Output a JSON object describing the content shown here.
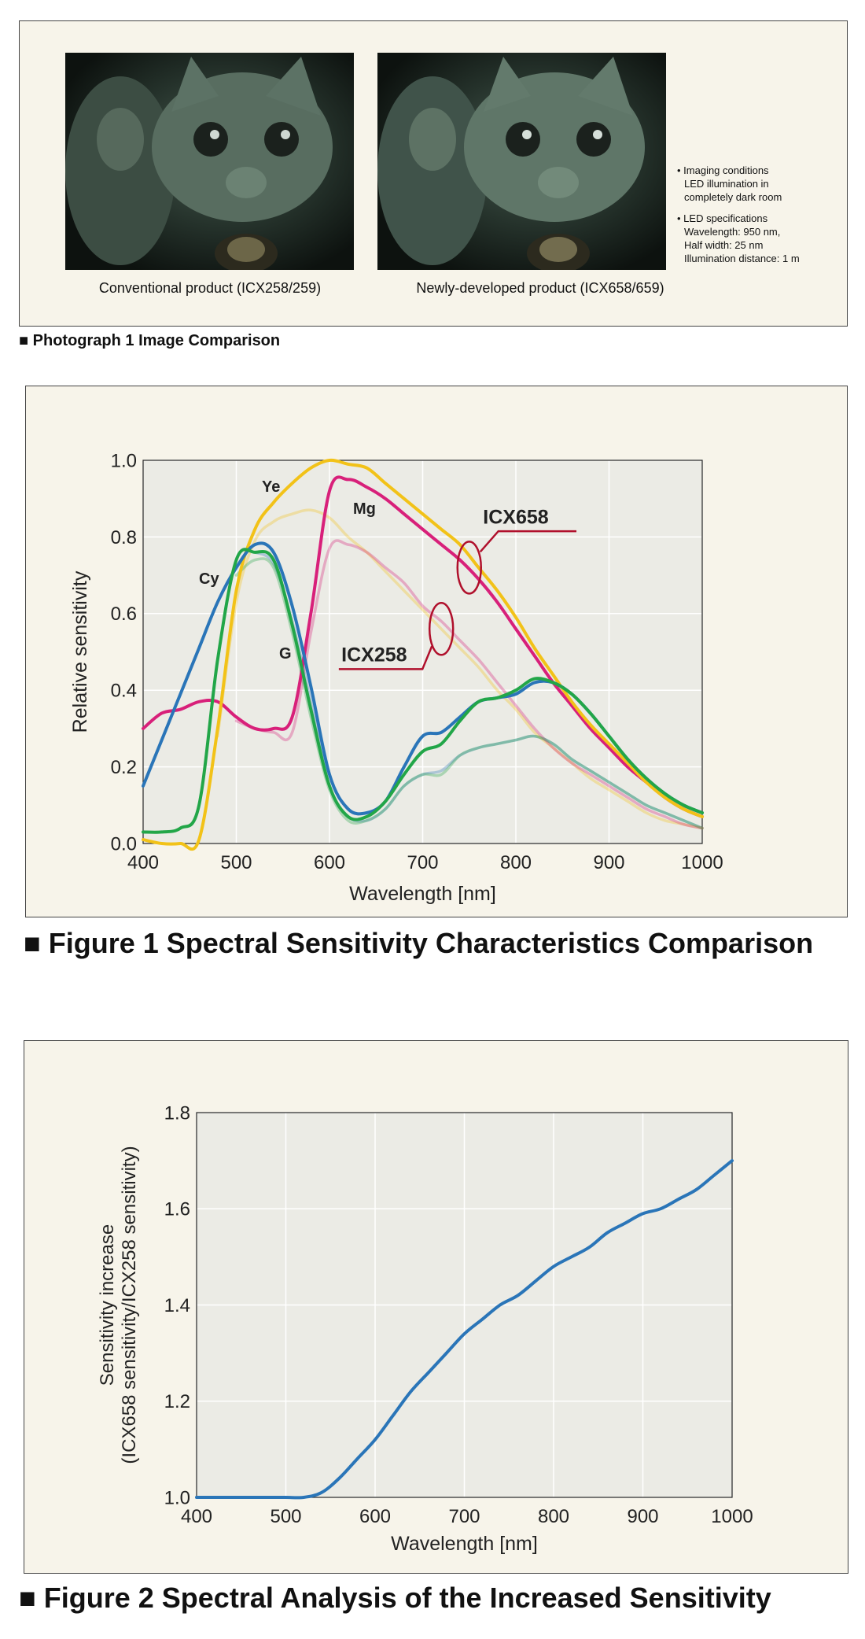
{
  "photograph": {
    "left_caption": "Conventional product (ICX258/259)",
    "right_caption": "Newly-developed product (ICX658/659)",
    "notes": [
      {
        "head": "• Imaging conditions",
        "lines": [
          "LED illumination in",
          "completely dark room"
        ]
      },
      {
        "head": "• LED specifications",
        "lines": [
          "Wavelength: 950 nm,",
          "Half width: 25 nm",
          "Illumination distance: 1 m"
        ]
      }
    ],
    "title": "■ Photograph 1   Image Comparison"
  },
  "figure1_title": "■ Figure 1   Spectral Sensitivity Characteristics Comparison",
  "figure2_title": "■ Figure 2   Spectral Analysis of the Increased Sensitivity",
  "colors": {
    "Cy": "#2a75b8",
    "Ye": "#f2c218",
    "Mg": "#d8207a",
    "G": "#22a648",
    "ann": "#b0102c",
    "fig2_line": "#2a75b8",
    "panel": "#f7f4ea",
    "plot": "#ebebe5"
  },
  "chart_data": [
    {
      "type": "line",
      "xlabel": "Wavelength [nm]",
      "ylabel": "Relative sensitivity",
      "xlim": [
        400,
        1000
      ],
      "ylim": [
        0,
        1.0
      ],
      "xticks": [
        "400",
        "500",
        "600",
        "700",
        "800",
        "900",
        "1000"
      ],
      "yticks": [
        "0.0",
        "0.2",
        "0.4",
        "0.6",
        "0.8",
        "1.0"
      ],
      "grid": true,
      "x": [
        400,
        420,
        440,
        460,
        480,
        500,
        520,
        540,
        560,
        580,
        600,
        620,
        640,
        660,
        680,
        700,
        720,
        740,
        760,
        780,
        800,
        820,
        840,
        860,
        880,
        900,
        920,
        940,
        960,
        980,
        1000
      ],
      "series": [
        {
          "name": "Cy",
          "product": "ICX658",
          "values": [
            0.15,
            0.27,
            0.39,
            0.51,
            0.63,
            0.72,
            0.78,
            0.76,
            0.62,
            0.41,
            0.18,
            0.09,
            0.08,
            0.11,
            0.2,
            0.28,
            0.29,
            0.33,
            0.37,
            0.38,
            0.39,
            0.42,
            0.42,
            0.39,
            0.34,
            0.28,
            0.22,
            0.17,
            0.13,
            0.1,
            0.08
          ]
        },
        {
          "name": "Ye",
          "product": "ICX658",
          "values": [
            0.01,
            0.0,
            0.0,
            0.01,
            0.3,
            0.66,
            0.82,
            0.89,
            0.94,
            0.98,
            1.0,
            0.99,
            0.98,
            0.94,
            0.9,
            0.86,
            0.82,
            0.78,
            0.72,
            0.66,
            0.59,
            0.51,
            0.44,
            0.37,
            0.31,
            0.26,
            0.21,
            0.16,
            0.12,
            0.09,
            0.07
          ]
        },
        {
          "name": "Mg",
          "product": "ICX658",
          "values": [
            0.3,
            0.34,
            0.35,
            0.37,
            0.37,
            0.33,
            0.3,
            0.3,
            0.33,
            0.6,
            0.92,
            0.95,
            0.93,
            0.9,
            0.86,
            0.82,
            0.78,
            0.74,
            0.69,
            0.63,
            0.56,
            0.49,
            0.42,
            0.36,
            0.3,
            0.25,
            0.2,
            0.16,
            0.12,
            0.09,
            0.07
          ]
        },
        {
          "name": "G",
          "product": "ICX658",
          "values": [
            0.03,
            0.03,
            0.04,
            0.1,
            0.48,
            0.74,
            0.76,
            0.74,
            0.57,
            0.35,
            0.15,
            0.07,
            0.07,
            0.11,
            0.18,
            0.24,
            0.26,
            0.32,
            0.37,
            0.38,
            0.4,
            0.43,
            0.42,
            0.39,
            0.34,
            0.28,
            0.22,
            0.17,
            0.13,
            0.1,
            0.08
          ]
        },
        {
          "name": "Cy",
          "product": "ICX258",
          "values": [
            null,
            null,
            null,
            null,
            null,
            null,
            0.76,
            0.73,
            0.58,
            0.37,
            0.15,
            0.07,
            0.06,
            0.09,
            0.15,
            0.18,
            0.19,
            0.23,
            0.25,
            0.26,
            0.27,
            0.28,
            0.26,
            0.22,
            0.19,
            0.16,
            0.13,
            0.1,
            0.08,
            0.06,
            0.04
          ]
        },
        {
          "name": "Ye",
          "product": "ICX258",
          "values": [
            null,
            null,
            null,
            null,
            0.28,
            0.63,
            0.79,
            0.84,
            0.86,
            0.87,
            0.85,
            0.8,
            0.76,
            0.71,
            0.66,
            0.61,
            0.56,
            0.51,
            0.46,
            0.4,
            0.35,
            0.29,
            0.25,
            0.21,
            0.17,
            0.14,
            0.11,
            0.08,
            0.06,
            0.05,
            0.04
          ]
        },
        {
          "name": "Mg",
          "product": "ICX258",
          "values": [
            null,
            null,
            null,
            null,
            null,
            0.32,
            0.3,
            0.29,
            0.29,
            0.55,
            0.77,
            0.78,
            0.76,
            0.72,
            0.68,
            0.62,
            0.58,
            0.53,
            0.48,
            0.42,
            0.36,
            0.3,
            0.25,
            0.21,
            0.18,
            0.15,
            0.12,
            0.09,
            0.07,
            0.05,
            0.04
          ]
        },
        {
          "name": "G",
          "product": "ICX258",
          "values": [
            null,
            null,
            null,
            null,
            null,
            0.7,
            0.74,
            0.72,
            0.55,
            0.33,
            0.14,
            0.06,
            0.06,
            0.09,
            0.15,
            0.18,
            0.18,
            0.23,
            0.25,
            0.26,
            0.27,
            0.28,
            0.26,
            0.22,
            0.19,
            0.16,
            0.13,
            0.1,
            0.08,
            0.06,
            0.04
          ]
        }
      ],
      "annotations": [
        {
          "text": "ICX658",
          "x": 750,
          "y": 0.72
        },
        {
          "text": "ICX258",
          "x": 720,
          "y": 0.56
        }
      ]
    },
    {
      "type": "line",
      "xlabel": "Wavelength [nm]",
      "ylabel_lines": [
        "Sensitivity increase",
        "(ICX658 sensitivity/ICX258 sensitivity)"
      ],
      "xlim": [
        400,
        1000
      ],
      "ylim": [
        1.0,
        1.8
      ],
      "xticks": [
        "400",
        "500",
        "600",
        "700",
        "800",
        "900",
        "1000"
      ],
      "yticks": [
        "1.0",
        "1.2",
        "1.4",
        "1.6",
        "1.8"
      ],
      "grid": true,
      "x": [
        400,
        420,
        440,
        460,
        480,
        500,
        520,
        540,
        560,
        580,
        600,
        620,
        640,
        660,
        680,
        700,
        720,
        740,
        760,
        780,
        800,
        820,
        840,
        860,
        880,
        900,
        920,
        940,
        960,
        980,
        1000
      ],
      "series": [
        {
          "values": [
            1.0,
            1.0,
            1.0,
            1.0,
            1.0,
            1.0,
            1.0,
            1.01,
            1.04,
            1.08,
            1.12,
            1.17,
            1.22,
            1.26,
            1.3,
            1.34,
            1.37,
            1.4,
            1.42,
            1.45,
            1.48,
            1.5,
            1.52,
            1.55,
            1.57,
            1.59,
            1.6,
            1.62,
            1.64,
            1.67,
            1.7
          ]
        }
      ]
    }
  ]
}
